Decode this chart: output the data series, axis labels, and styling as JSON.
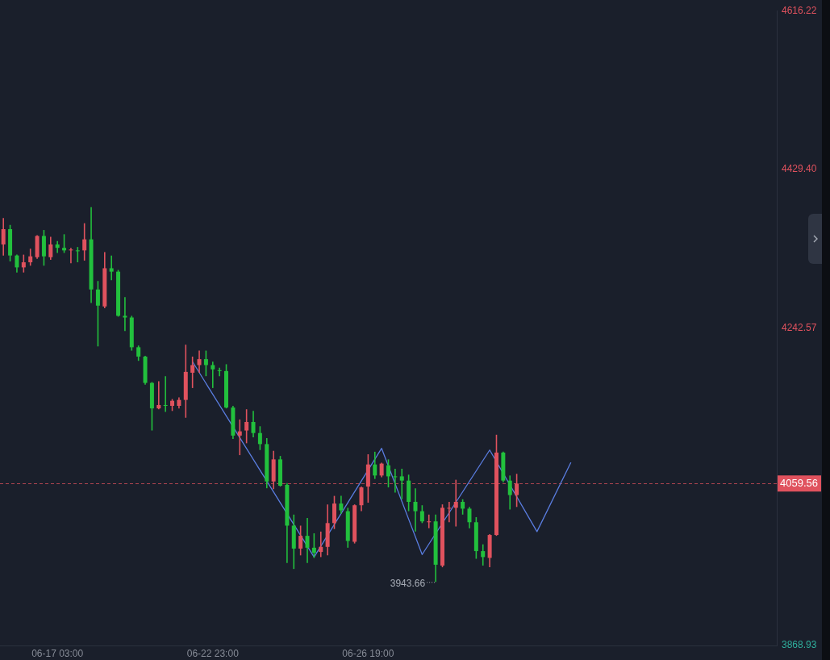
{
  "chart_data": {
    "type": "candlestick",
    "categories": [
      null,
      null,
      null,
      null,
      null,
      null,
      null,
      null,
      "06-17 03:00",
      null,
      null,
      null,
      null,
      null,
      null,
      null,
      null,
      null,
      null,
      null,
      null,
      null,
      null,
      null,
      null,
      null,
      null,
      null,
      null,
      null,
      null,
      "06-22 23:00",
      null,
      null,
      null,
      null,
      null,
      null,
      null,
      null,
      null,
      null,
      null,
      null,
      null,
      null,
      null,
      null,
      null,
      null,
      null,
      null,
      null,
      null,
      "06-26 19:00",
      null,
      null,
      null,
      null,
      null,
      null,
      null,
      null,
      null,
      null,
      null,
      null,
      null,
      null,
      null,
      null,
      null,
      null,
      null,
      null,
      null,
      null,
      null,
      null,
      null,
      null,
      null,
      null,
      null,
      null,
      null,
      null,
      null,
      null,
      null,
      null,
      null,
      null,
      null,
      null,
      null,
      null,
      null,
      null,
      null,
      null,
      null,
      null,
      null,
      null,
      null,
      null,
      null,
      null,
      null,
      null,
      null,
      null,
      null,
      null
    ],
    "ohlc": [
      [
        4341,
        4372,
        4328,
        4359
      ],
      [
        4359,
        4364,
        4321,
        4328
      ],
      [
        4328,
        4329,
        4308,
        4314
      ],
      [
        4314,
        4329,
        4308,
        4320
      ],
      [
        4320,
        4336,
        4316,
        4327
      ],
      [
        4326,
        4352,
        4324,
        4351
      ],
      [
        4351,
        4358,
        4316,
        4327
      ],
      [
        4326,
        4350,
        4323,
        4341
      ],
      [
        4341,
        4345,
        4331,
        4337
      ],
      [
        4337,
        4353,
        4331,
        4334
      ],
      [
        4334,
        4337,
        4319,
        4335
      ],
      [
        4334,
        4338,
        4320,
        4333
      ],
      [
        4334,
        4366,
        4322,
        4347
      ],
      [
        4347,
        4385,
        4272,
        4288
      ],
      [
        4288,
        4298,
        4221,
        4269
      ],
      [
        4268,
        4332,
        4266,
        4313
      ],
      [
        4313,
        4328,
        4299,
        4309
      ],
      [
        4309,
        4311,
        4256,
        4257
      ],
      [
        4257,
        4279,
        4239,
        4255
      ],
      [
        4255,
        4257,
        4216,
        4220
      ],
      [
        4220,
        4222,
        4204,
        4209
      ],
      [
        4209,
        4210,
        4176,
        4178
      ],
      [
        4178,
        4179,
        4122,
        4148
      ],
      [
        4148,
        4180,
        4147,
        4152
      ],
      [
        4152,
        4186,
        4144,
        4151
      ],
      [
        4151,
        4159,
        4145,
        4157
      ],
      [
        4151,
        4161,
        4148,
        4158
      ],
      [
        4158,
        4223,
        4137,
        4191
      ],
      [
        4190,
        4209,
        4172,
        4199
      ],
      [
        4199,
        4216,
        4190,
        4206
      ],
      [
        4206,
        4216,
        4186,
        4199
      ],
      [
        4199,
        4203,
        4172,
        4194
      ],
      [
        4193,
        4196,
        4186,
        4192
      ],
      [
        4192,
        4200,
        4148,
        4149
      ],
      [
        4149,
        4151,
        4112,
        4116
      ],
      [
        4116,
        4135,
        4093,
        4121
      ],
      [
        4122,
        4147,
        4107,
        4132
      ],
      [
        4132,
        4145,
        4114,
        4119
      ],
      [
        4119,
        4127,
        4099,
        4106
      ],
      [
        4106,
        4113,
        4054,
        4062
      ],
      [
        4062,
        4098,
        4053,
        4088
      ],
      [
        4088,
        4092,
        4056,
        4057
      ],
      [
        4058,
        4060,
        3966,
        4010
      ],
      [
        4010,
        4023,
        3959,
        3983
      ],
      [
        3983,
        4010,
        3975,
        3998
      ],
      [
        3998,
        4019,
        3966,
        3984
      ],
      [
        3984,
        4001,
        3972,
        3978
      ],
      [
        3979,
        4003,
        3973,
        3985
      ],
      [
        3985,
        4035,
        3975,
        4013
      ],
      [
        4013,
        4045,
        4006,
        4036
      ],
      [
        4036,
        4045,
        4024,
        4028
      ],
      [
        4027,
        4031,
        3984,
        3992
      ],
      [
        3991,
        4035,
        3989,
        4034
      ],
      [
        4034,
        4056,
        4027,
        4055
      ],
      [
        4056,
        4094,
        4037,
        4082
      ],
      [
        4082,
        4097,
        4065,
        4069
      ],
      [
        4069,
        4084,
        4067,
        4083
      ],
      [
        4081,
        4088,
        4055,
        4068
      ],
      [
        4068,
        4077,
        4049,
        4067
      ],
      [
        4068,
        4077,
        4041,
        4063
      ],
      [
        4063,
        4070,
        4027,
        4038
      ],
      [
        4038,
        4054,
        4003,
        4027
      ],
      [
        4027,
        4034,
        4013,
        4015
      ],
      [
        4014,
        4023,
        4007,
        4015
      ],
      [
        4015,
        4023,
        3943.66,
        3964
      ],
      [
        3963,
        4035,
        3961,
        4031
      ],
      [
        4030,
        4038,
        4014,
        4031
      ],
      [
        4031,
        4064,
        4009,
        4038
      ],
      [
        4038,
        4041,
        4023,
        4030
      ],
      [
        4030,
        4032,
        4007,
        4014
      ],
      [
        4014,
        4020,
        3971,
        3980
      ],
      [
        3980,
        3988,
        3963,
        3973
      ],
      [
        3972,
        4000,
        3961,
        3999
      ],
      [
        3999,
        4117,
        3998,
        4096
      ],
      [
        4096,
        4097,
        4061,
        4063
      ],
      [
        4063,
        4069,
        4029,
        4046
      ],
      [
        4046,
        4071,
        4032,
        4059.56
      ],
      null,
      null,
      null,
      null,
      null,
      null,
      null,
      null,
      null,
      null,
      null,
      null,
      null,
      null,
      null,
      null,
      null,
      null,
      null,
      null,
      null,
      null,
      null,
      null,
      null,
      null,
      null,
      null,
      null,
      null,
      null,
      null,
      null,
      null,
      null,
      null,
      null,
      null
    ],
    "colors": [
      "#e0525e",
      "#22c03d",
      "#22c03d",
      "#e0525e",
      "#e0525e",
      "#e0525e",
      "#22c03d",
      "#e0525e",
      "#22c03d",
      "#22c03d",
      "#e0525e",
      "#22c03d",
      "#e0525e",
      "#22c03d",
      "#22c03d",
      "#e0525e",
      "#22c03d",
      "#22c03d",
      "#22c03d",
      "#22c03d",
      "#22c03d",
      "#22c03d",
      "#22c03d",
      "#e0525e",
      "#22c03d",
      "#e0525e",
      "#e0525e",
      "#e0525e",
      "#e0525e",
      "#e0525e",
      "#22c03d",
      "#22c03d",
      "#22c03d",
      "#22c03d",
      "#22c03d",
      "#e0525e",
      "#e0525e",
      "#22c03d",
      "#22c03d",
      "#22c03d",
      "#e0525e",
      "#22c03d",
      "#22c03d",
      "#22c03d",
      "#e0525e",
      "#22c03d",
      "#22c03d",
      "#e0525e",
      "#e0525e",
      "#e0525e",
      "#22c03d",
      "#22c03d",
      "#e0525e",
      "#e0525e",
      "#e0525e",
      "#22c03d",
      "#e0525e",
      "#22c03d",
      "#22c03d",
      "#22c03d",
      "#22c03d",
      "#22c03d",
      "#22c03d",
      "#e0525e",
      "#22c03d",
      "#e0525e",
      "#e0525e",
      "#e0525e",
      "#22c03d",
      "#22c03d",
      "#22c03d",
      "#22c03d",
      "#e0525e",
      "#e0525e",
      "#22c03d",
      "#22c03d",
      "#e0525e",
      null,
      null,
      null,
      null,
      null,
      null,
      null,
      null,
      null,
      null,
      null,
      null,
      null,
      null,
      null,
      null,
      null,
      null,
      null,
      null,
      null,
      null,
      null,
      null,
      null,
      null,
      null,
      null,
      null,
      null,
      null,
      null,
      null,
      null,
      null,
      null,
      null,
      null
    ],
    "series": [
      {
        "type": "line",
        "color": "#5a7de0",
        "values": [
          null,
          null,
          null,
          null,
          null,
          null,
          null,
          null,
          null,
          null,
          null,
          null,
          null,
          null,
          null,
          null,
          null,
          null,
          null,
          null,
          null,
          null,
          null,
          null,
          null,
          null,
          null,
          null,
          4203,
          null,
          null,
          null,
          null,
          null,
          null,
          null,
          null,
          null,
          null,
          null,
          null,
          null,
          null,
          null,
          null,
          null,
          3973,
          null,
          null,
          null,
          null,
          null,
          null,
          null,
          null,
          null,
          4101,
          null,
          null,
          null,
          null,
          null,
          3976,
          null,
          null,
          null,
          null,
          null,
          null,
          null,
          null,
          null,
          4099,
          null,
          null,
          null,
          null,
          null,
          null,
          4003,
          null,
          null,
          null,
          null,
          4084,
          null,
          null,
          null,
          null,
          null,
          null,
          null,
          null,
          null,
          null,
          null,
          null,
          null,
          null,
          null,
          null,
          null,
          null,
          null,
          null,
          null,
          null,
          null,
          null,
          null,
          null,
          null,
          null,
          null,
          null
        ]
      }
    ],
    "ylim": [
      3868.93,
      4616.22
    ],
    "yticks": [
      4616.22,
      {
        "value": 4429.4,
        "label": "4429.40"
      },
      4242.57,
      3868.93
    ],
    "ref_lines": [
      {
        "axis": "y",
        "value": 4059.56,
        "label": "4059.56",
        "color": "#e0525e",
        "line_style": "dashed"
      }
    ],
    "annotations": [
      "3943.66"
    ]
  }
}
